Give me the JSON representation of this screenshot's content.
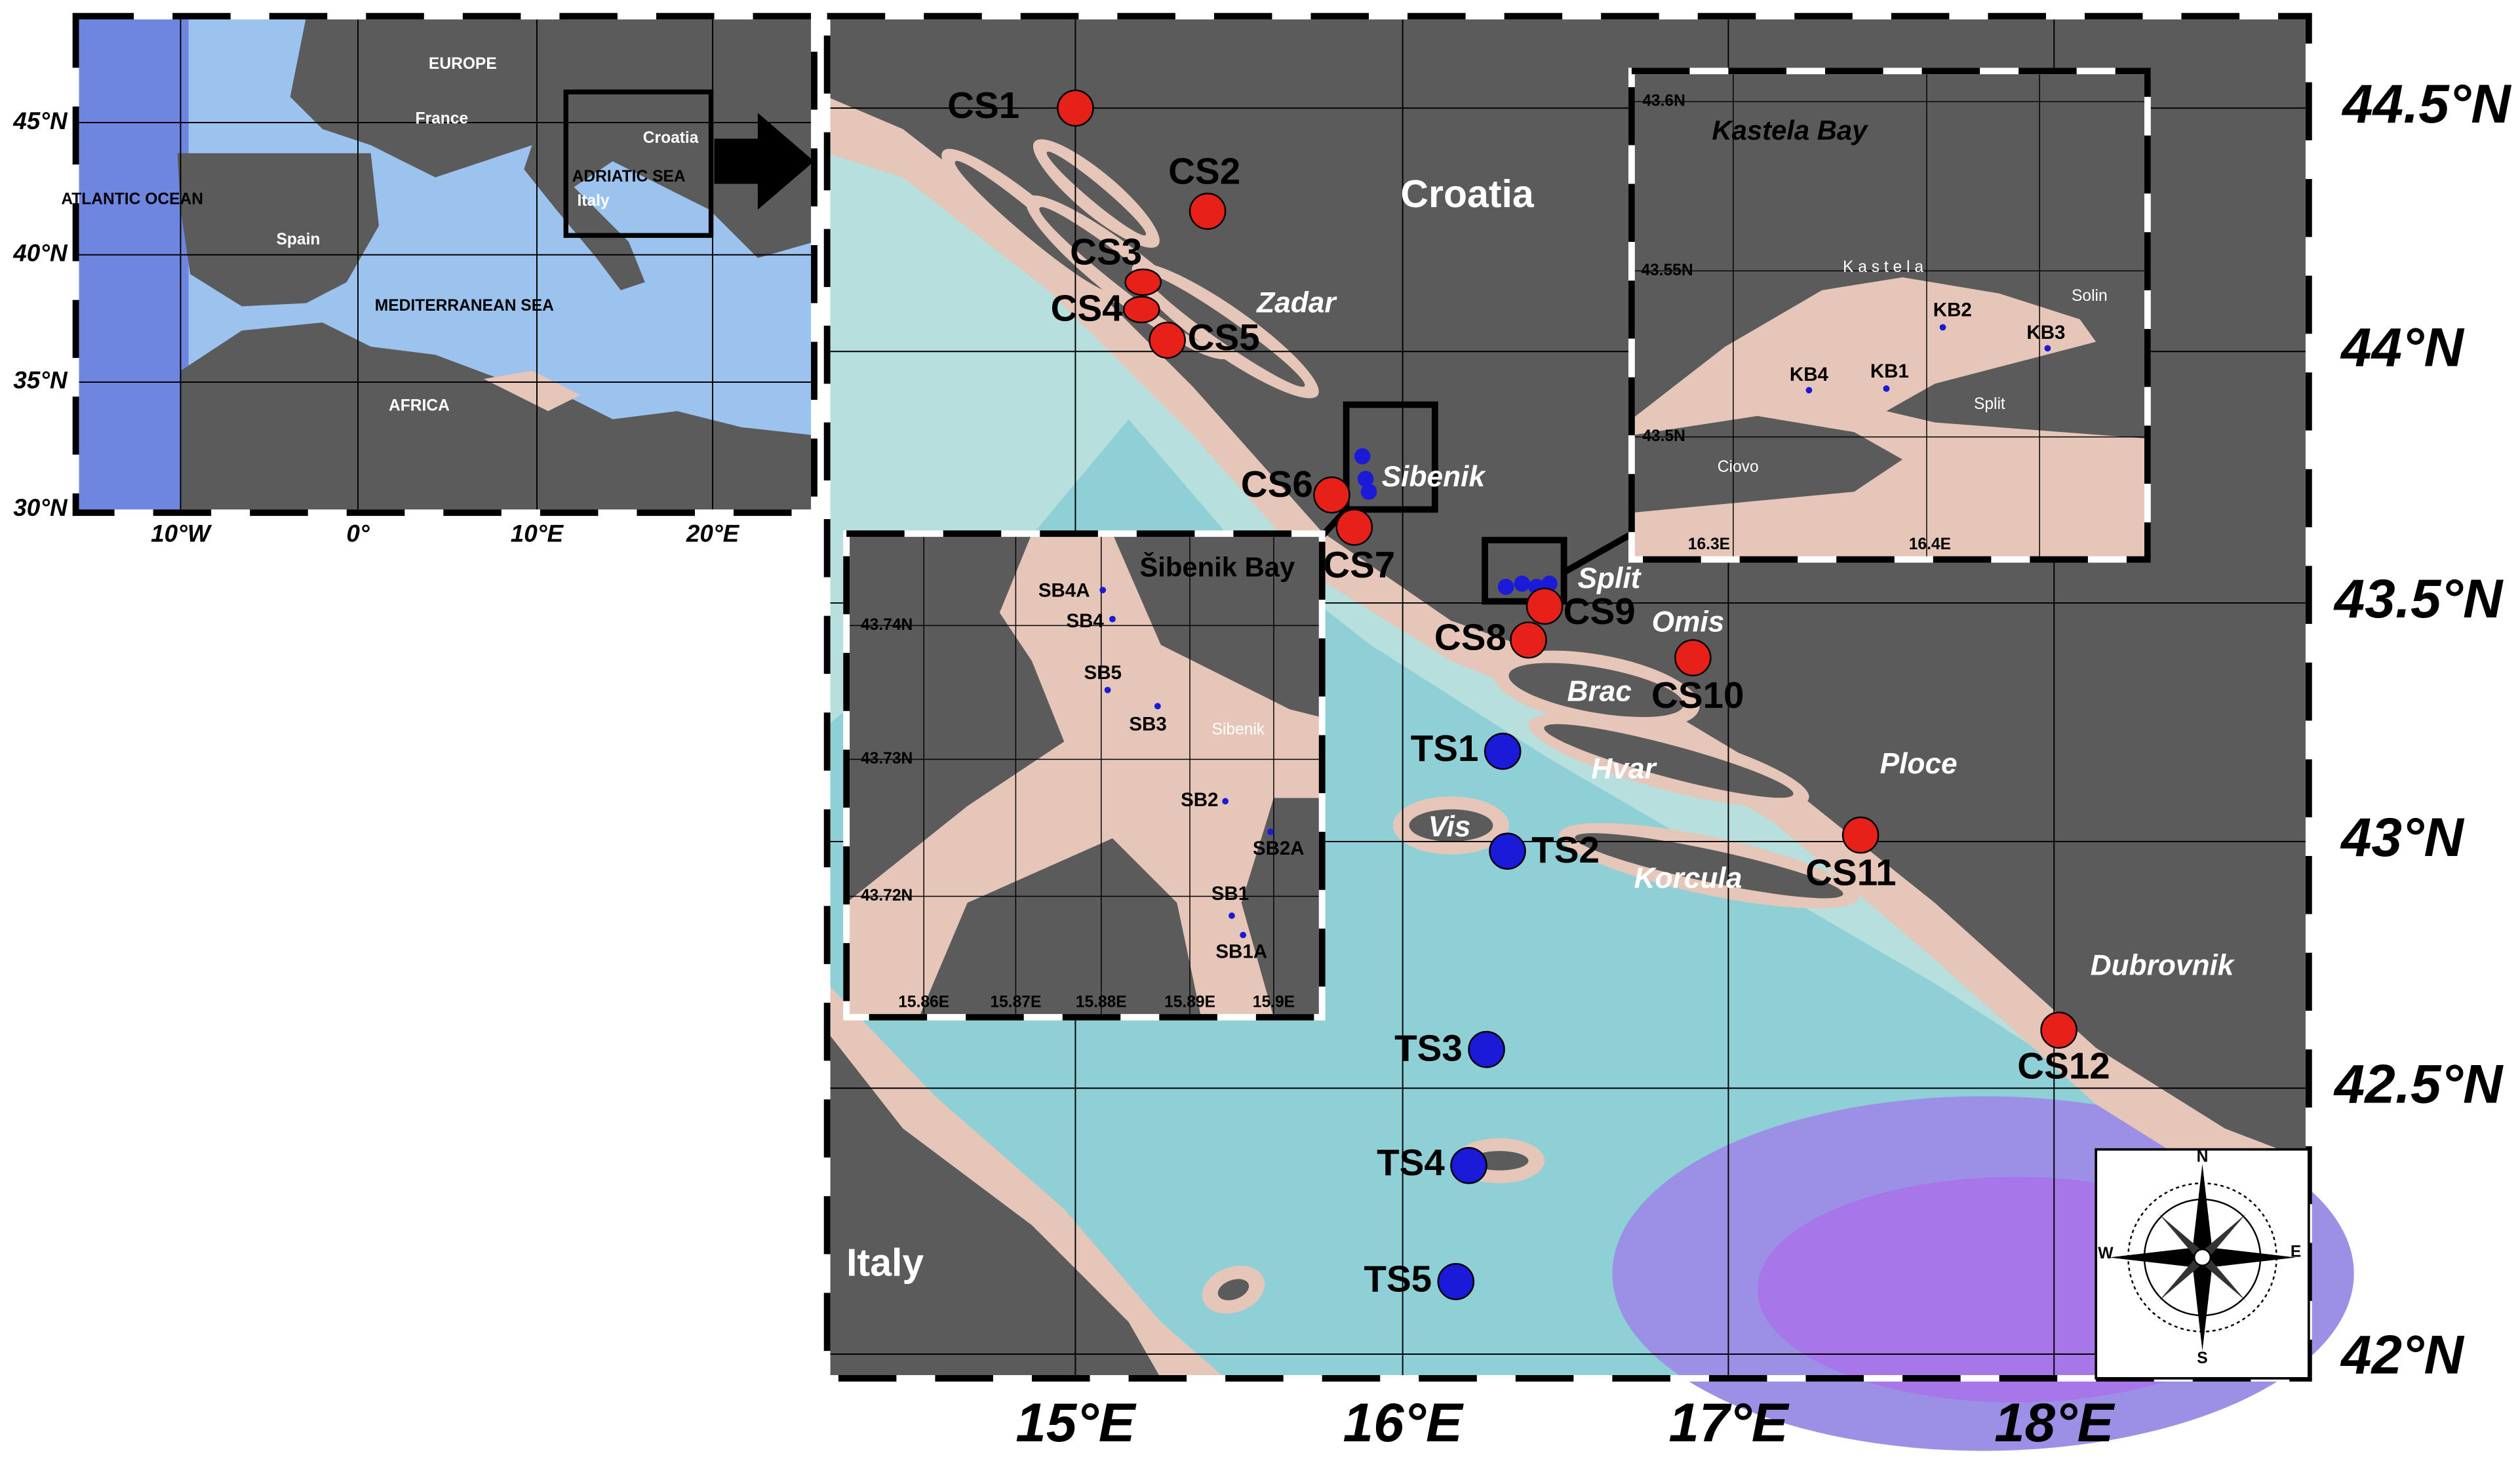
{
  "overview_map": {
    "lat_labels": [
      "45°N",
      "40°N",
      "35°N",
      "30°N"
    ],
    "lon_labels": [
      "10°W",
      "0°",
      "10°E",
      "20°E"
    ],
    "places": [
      "EUROPE",
      "France",
      "Spain",
      "ATLANTIC OCEAN",
      "MEDITERRANEAN SEA",
      "AFRICA",
      "Croatia",
      "ADRIATIC SEA",
      "Italy"
    ]
  },
  "main_map": {
    "lat_labels": [
      "44.5°N",
      "44°N",
      "43.5°N",
      "43°N",
      "42.5°N",
      "42°N"
    ],
    "lon_labels": [
      "15°E",
      "16°E",
      "17°E",
      "18°E"
    ],
    "places": [
      "Croatia",
      "Zadar",
      "Sibenik",
      "Split",
      "Omis",
      "Brac",
      "Hvar",
      "Vis",
      "Korcula",
      "Ploce",
      "Dubrovnik",
      "Italy"
    ],
    "stations": [
      {
        "label": "CS1",
        "color": "#e8201a"
      },
      {
        "label": "CS2",
        "color": "#e8201a"
      },
      {
        "label": "CS3",
        "color": "#e8201a"
      },
      {
        "label": "CS4",
        "color": "#e8201a"
      },
      {
        "label": "CS5",
        "color": "#e8201a"
      },
      {
        "label": "CS6",
        "color": "#e8201a"
      },
      {
        "label": "CS7",
        "color": "#e8201a"
      },
      {
        "label": "CS8",
        "color": "#e8201a"
      },
      {
        "label": "CS9",
        "color": "#e8201a"
      },
      {
        "label": "CS10",
        "color": "#e8201a"
      },
      {
        "label": "CS11",
        "color": "#e8201a"
      },
      {
        "label": "CS12",
        "color": "#e8201a"
      },
      {
        "label": "TS1",
        "color": "#1a1ad8"
      },
      {
        "label": "TS2",
        "color": "#1a1ad8"
      },
      {
        "label": "TS3",
        "color": "#1a1ad8"
      },
      {
        "label": "TS4",
        "color": "#1a1ad8"
      },
      {
        "label": "TS5",
        "color": "#1a1ad8"
      }
    ],
    "compass": [
      "N",
      "E",
      "S",
      "W"
    ]
  },
  "kastela_inset": {
    "title": "Kastela Bay",
    "lat_labels": [
      "43.6N",
      "43.55N",
      "43.5N"
    ],
    "lon_labels": [
      "16.3E",
      "16.4E"
    ],
    "places": [
      "K a s t e l a",
      "Solin",
      "Split",
      "Ciovo"
    ],
    "stations": [
      "KB2",
      "KB3",
      "KB4",
      "KB1"
    ]
  },
  "sibenik_inset": {
    "title": "Šibenik  Bay",
    "lat_labels": [
      "43.74N",
      "43.73N",
      "43.72N"
    ],
    "lon_labels": [
      "15.86E",
      "15.87E",
      "15.88E",
      "15.89E",
      "15.9E"
    ],
    "places": [
      "Sibenik"
    ],
    "stations": [
      "SB4A",
      "SB4",
      "SB5",
      "SB3",
      "SB2",
      "SB2A",
      "SB1",
      "SB1A"
    ]
  }
}
